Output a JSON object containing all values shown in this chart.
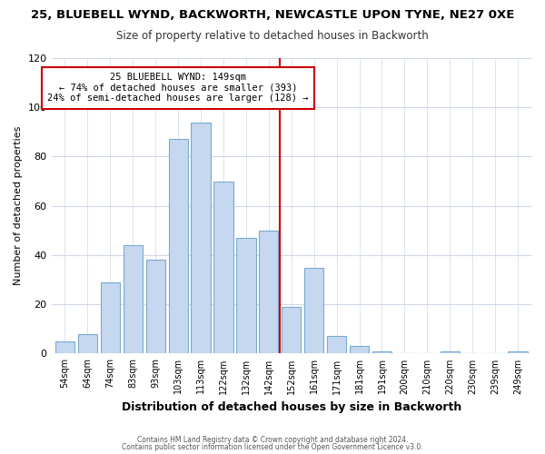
{
  "title": "25, BLUEBELL WYND, BACKWORTH, NEWCASTLE UPON TYNE, NE27 0XE",
  "subtitle": "Size of property relative to detached houses in Backworth",
  "xlabel": "Distribution of detached houses by size in Backworth",
  "ylabel": "Number of detached properties",
  "bar_labels": [
    "54sqm",
    "64sqm",
    "74sqm",
    "83sqm",
    "93sqm",
    "103sqm",
    "113sqm",
    "122sqm",
    "132sqm",
    "142sqm",
    "152sqm",
    "161sqm",
    "171sqm",
    "181sqm",
    "191sqm",
    "200sqm",
    "210sqm",
    "220sqm",
    "230sqm",
    "239sqm",
    "249sqm"
  ],
  "bar_heights": [
    5,
    8,
    29,
    44,
    38,
    87,
    94,
    70,
    47,
    50,
    19,
    35,
    7,
    3,
    1,
    0,
    0,
    1,
    0,
    0,
    1
  ],
  "bar_color": "#c5d8f0",
  "bar_edge_color": "#7aaad0",
  "vline_color": "#cc0000",
  "annotation_title": "25 BLUEBELL WYND: 149sqm",
  "annotation_line1": "← 74% of detached houses are smaller (393)",
  "annotation_line2": "24% of semi-detached houses are larger (128) →",
  "annotation_box_color": "#ffffff",
  "annotation_box_edge": "#cc0000",
  "ylim": [
    0,
    120
  ],
  "yticks": [
    0,
    20,
    40,
    60,
    80,
    100,
    120
  ],
  "footer1": "Contains HM Land Registry data © Crown copyright and database right 2024.",
  "footer2": "Contains public sector information licensed under the Open Government Licence v3.0.",
  "bg_color": "#ffffff",
  "plot_bg_color": "#ffffff"
}
